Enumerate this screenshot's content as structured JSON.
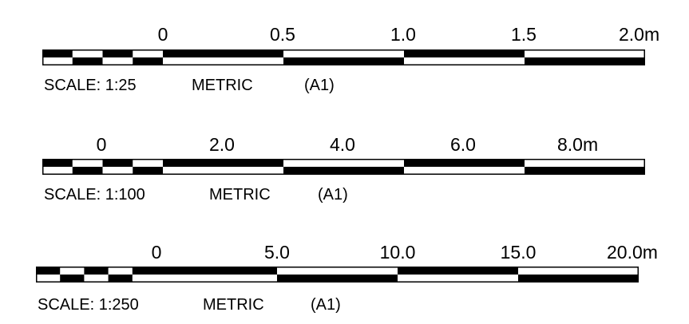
{
  "colors": {
    "ink": "#000000",
    "paper": "#ffffff"
  },
  "scale_bars": [
    {
      "ticks": [
        "0",
        "0.5",
        "1.0",
        "1.5",
        "2.0m"
      ],
      "caption": {
        "scale": "SCALE: 1:25",
        "system": "METRIC",
        "sheet": "(A1)"
      }
    },
    {
      "ticks": [
        "0",
        "2.0",
        "4.0",
        "6.0",
        "8.0m"
      ],
      "caption": {
        "scale": "SCALE: 1:100",
        "system": "METRIC",
        "sheet": "(A1)"
      }
    },
    {
      "ticks": [
        "0",
        "5.0",
        "10.0",
        "15.0",
        "20.0m"
      ],
      "caption": {
        "scale": "SCALE: 1:250",
        "system": "METRIC",
        "sheet": "(A1)"
      }
    }
  ]
}
